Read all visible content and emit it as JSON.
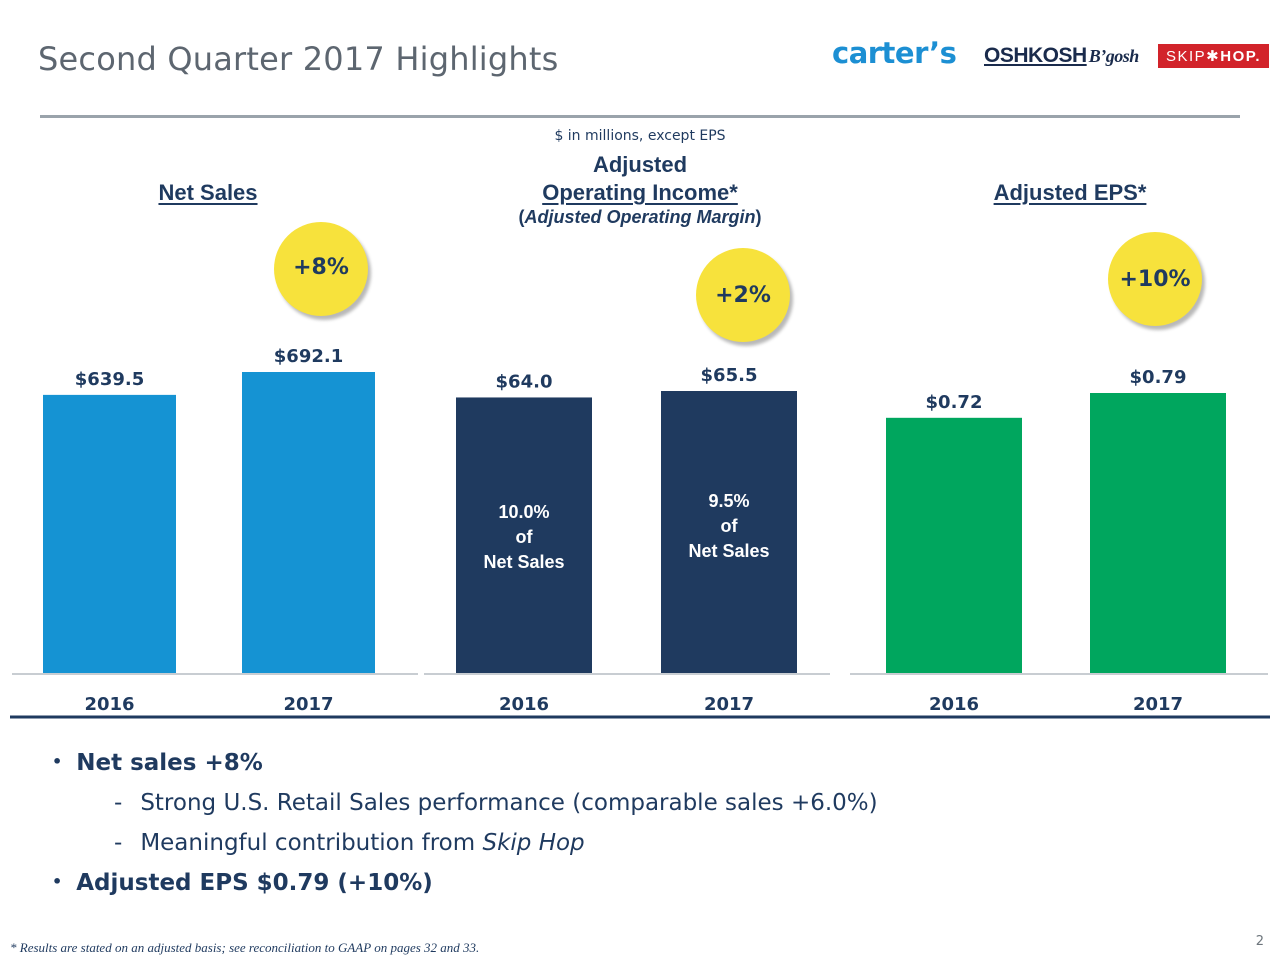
{
  "header": {
    "title": "Second Quarter 2017 Highlights",
    "logos": {
      "carters": "carter’s",
      "oshkosh": "OSHKOSH",
      "oshkosh_sub": "B’gosh",
      "skiphop_left": "SKIP",
      "skiphop_star": "✱",
      "skiphop_right": "HOP."
    }
  },
  "units_note": "$ in millions, except EPS",
  "panels": {
    "net_sales": {
      "title": "Net Sales",
      "badge": "+8%"
    },
    "operating_income": {
      "title_line1": "Adjusted",
      "title_line2": "Operating Income*",
      "subtitle_open": "(",
      "subtitle": "Adjusted Operating Margin",
      "subtitle_close": ")",
      "badge": "+2%"
    },
    "eps": {
      "title": "Adjusted EPS*",
      "badge": "+10%"
    }
  },
  "colors": {
    "net_sales": "#1593d3",
    "operating_income": "#1f3a5f",
    "eps": "#00a65e",
    "badge": "#f7e23c",
    "text": "#1f3a5f"
  },
  "chart_data": [
    {
      "type": "bar",
      "title": "Net Sales",
      "categories": [
        "2016",
        "2017"
      ],
      "values": [
        639.5,
        692.1
      ],
      "data_labels": [
        "$639.5",
        "$692.1"
      ]
    },
    {
      "type": "bar",
      "title": "Adjusted Operating Income*",
      "categories": [
        "2016",
        "2017"
      ],
      "values": [
        64.0,
        65.5
      ],
      "data_labels": [
        "$64.0",
        "$65.5"
      ],
      "margins": [
        "10.0%",
        "9.5%"
      ],
      "margin_of": "of",
      "margin_suffix": "Net Sales"
    },
    {
      "type": "bar",
      "title": "Adjusted EPS*",
      "categories": [
        "2016",
        "2017"
      ],
      "values": [
        0.72,
        0.79
      ],
      "data_labels": [
        "$0.72",
        "$0.79"
      ]
    }
  ],
  "bullets": {
    "b1": "Net sales +8%",
    "b1a": "Strong U.S. Retail Sales performance (comparable sales +6.0%)",
    "b1b_text": "Meaningful contribution from ",
    "b1b_italic": "Skip Hop",
    "b2": "Adjusted EPS $0.79 (+10%)",
    "dot": "•",
    "dash": "-"
  },
  "footnote": "* Results are stated on an adjusted basis; see reconciliation to GAAP on pages 32 and 33.",
  "page_number": "2"
}
